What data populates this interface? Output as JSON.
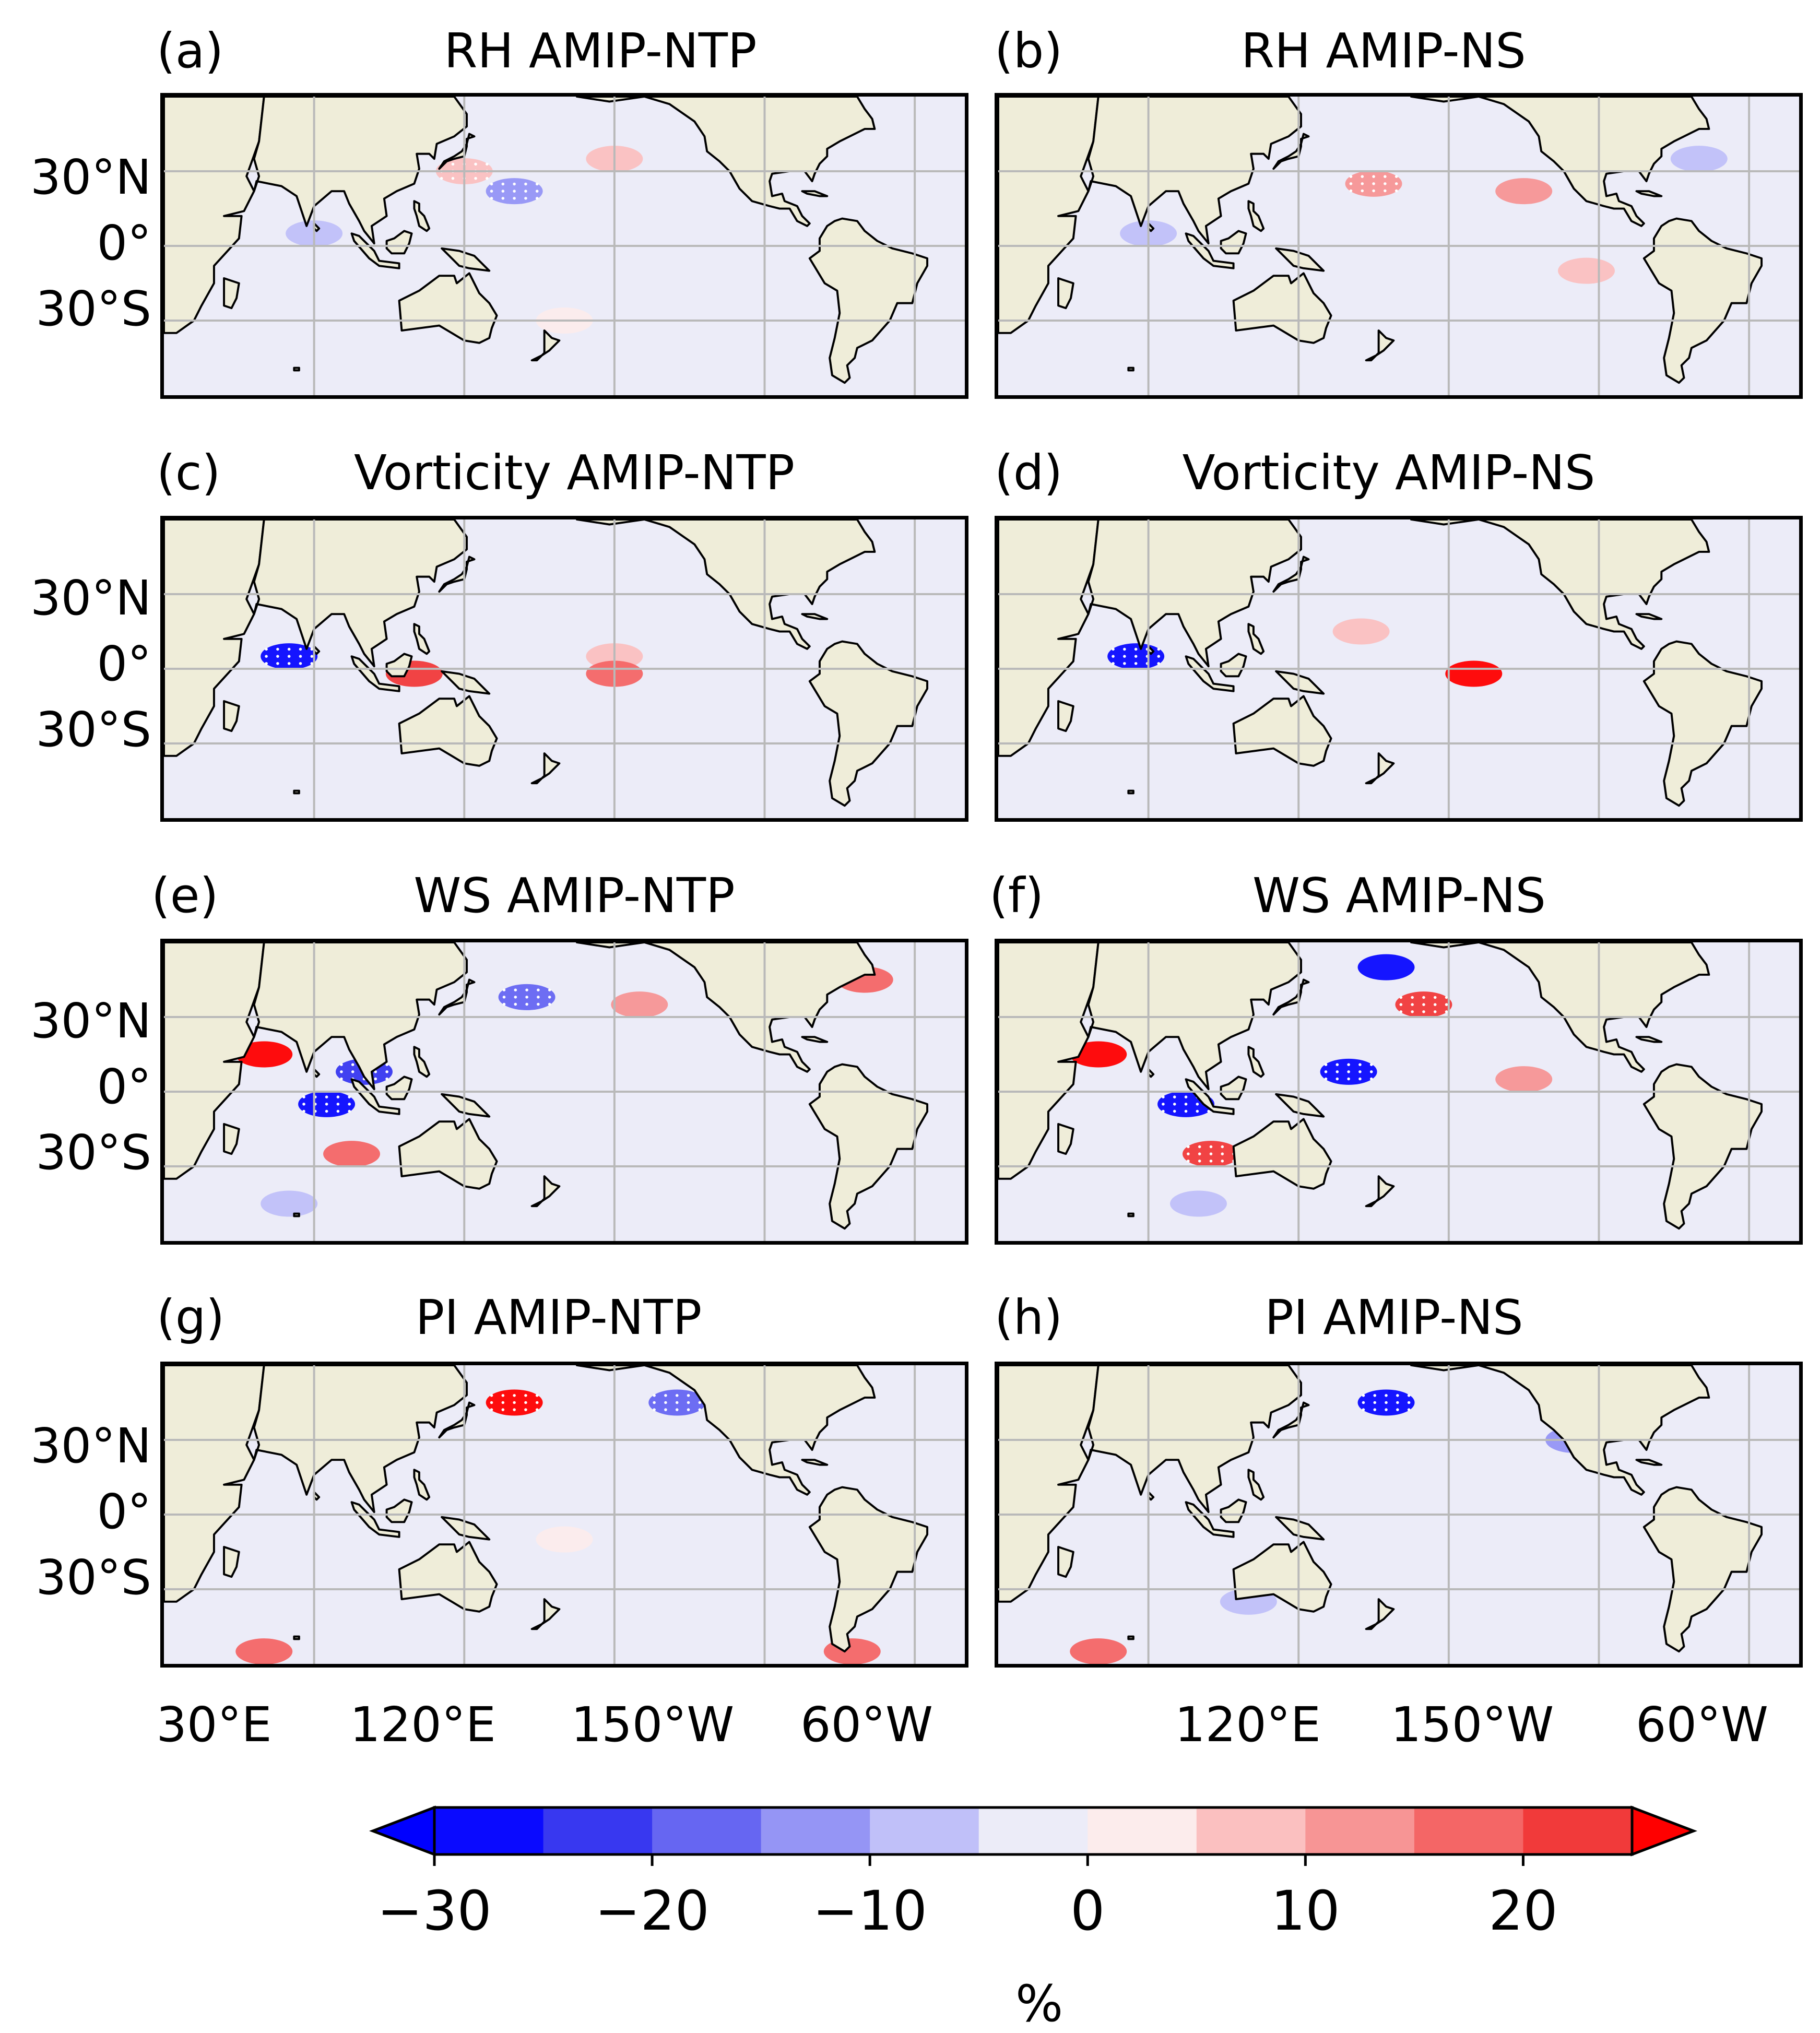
{
  "figure": {
    "colors": {
      "land": "#efedd9",
      "coast": "#000000",
      "grid": "#b9b9b9",
      "ocean_neutral": "#ececf8"
    }
  },
  "chart_data": [
    {
      "id": "a",
      "type": "heatmap",
      "label": "(a)",
      "title": "RH AMIP-NTP",
      "variable": "RH",
      "experiment": "AMIP-NTP",
      "features": [
        {
          "lon": 160,
          "lat": 22,
          "value": -12,
          "stippled": true
        },
        {
          "lon": 80,
          "lat": 5,
          "value": -7
        },
        {
          "lon": 140,
          "lat": 30,
          "value": 8,
          "stippled": true
        },
        {
          "lon": 200,
          "lat": 35,
          "value": 6
        },
        {
          "lon": 180,
          "lat": -30,
          "value": 4
        }
      ]
    },
    {
      "id": "b",
      "type": "heatmap",
      "label": "(b)",
      "title": "RH AMIP-NS",
      "variable": "RH",
      "experiment": "AMIP-NS",
      "features": [
        {
          "lon": 170,
          "lat": 25,
          "value": 12,
          "stippled": true
        },
        {
          "lon": 230,
          "lat": 22,
          "value": 12
        },
        {
          "lon": 80,
          "lat": 5,
          "value": -7
        },
        {
          "lon": 255,
          "lat": -10,
          "value": 8
        },
        {
          "lon": 300,
          "lat": 35,
          "value": -6
        }
      ]
    },
    {
      "id": "c",
      "type": "heatmap",
      "label": "(c)",
      "title": "Vorticity AMIP-NTP",
      "variable": "Vorticity",
      "experiment": "AMIP-NTP",
      "features": [
        {
          "lon": 70,
          "lat": 5,
          "value": -30,
          "stippled": true
        },
        {
          "lon": 120,
          "lat": -2,
          "value": 20
        },
        {
          "lon": 200,
          "lat": 5,
          "value": 6
        },
        {
          "lon": 200,
          "lat": -2,
          "value": 15
        }
      ]
    },
    {
      "id": "d",
      "type": "heatmap",
      "label": "(d)",
      "title": "Vorticity AMIP-NS",
      "variable": "Vorticity",
      "experiment": "AMIP-NS",
      "features": [
        {
          "lon": 75,
          "lat": 5,
          "value": -30,
          "stippled": true
        },
        {
          "lon": 210,
          "lat": -2,
          "value": 25
        },
        {
          "lon": 165,
          "lat": 15,
          "value": 8
        }
      ]
    },
    {
      "id": "e",
      "type": "heatmap",
      "label": "(e)",
      "title": "WS AMIP-NTP",
      "variable": "WS",
      "experiment": "AMIP-NTP",
      "features": [
        {
          "lon": 85,
          "lat": -5,
          "value": -30,
          "stippled": true
        },
        {
          "lon": 100,
          "lat": 8,
          "value": -25,
          "stippled": true
        },
        {
          "lon": 95,
          "lat": -25,
          "value": 18
        },
        {
          "lon": 60,
          "lat": 15,
          "value": 25
        },
        {
          "lon": 165,
          "lat": 38,
          "value": -20,
          "stippled": true
        },
        {
          "lon": 210,
          "lat": 35,
          "value": 12
        },
        {
          "lon": 300,
          "lat": 45,
          "value": 15
        },
        {
          "lon": 70,
          "lat": -45,
          "value": -8
        }
      ]
    },
    {
      "id": "f",
      "type": "heatmap",
      "label": "(f)",
      "title": "WS AMIP-NS",
      "variable": "WS",
      "experiment": "AMIP-NS",
      "features": [
        {
          "lon": 95,
          "lat": -5,
          "value": -30,
          "stippled": true
        },
        {
          "lon": 160,
          "lat": 8,
          "value": -28,
          "stippled": true
        },
        {
          "lon": 190,
          "lat": 35,
          "value": 22,
          "stippled": true
        },
        {
          "lon": 175,
          "lat": 50,
          "value": -28
        },
        {
          "lon": 105,
          "lat": -25,
          "value": 22,
          "stippled": true
        },
        {
          "lon": 230,
          "lat": 5,
          "value": 12
        },
        {
          "lon": 60,
          "lat": 15,
          "value": 25
        },
        {
          "lon": 100,
          "lat": -45,
          "value": -10
        }
      ]
    },
    {
      "id": "g",
      "type": "heatmap",
      "label": "(g)",
      "title": "PI AMIP-NTP",
      "variable": "PI",
      "experiment": "AMIP-NTP",
      "features": [
        {
          "lon": 160,
          "lat": 45,
          "value": 28,
          "stippled": true
        },
        {
          "lon": 225,
          "lat": 45,
          "value": -20,
          "stippled": true
        },
        {
          "lon": 60,
          "lat": -55,
          "value": 18
        },
        {
          "lon": 295,
          "lat": -55,
          "value": 18
        },
        {
          "lon": 180,
          "lat": -10,
          "value": 3
        }
      ]
    },
    {
      "id": "h",
      "type": "heatmap",
      "label": "(h)",
      "title": "PI AMIP-NS",
      "variable": "PI",
      "experiment": "AMIP-NS",
      "features": [
        {
          "lon": 175,
          "lat": 45,
          "value": -30,
          "stippled": true
        },
        {
          "lon": 250,
          "lat": 30,
          "value": -15
        },
        {
          "lon": 60,
          "lat": -55,
          "value": 15
        },
        {
          "lon": 180,
          "lat": -10,
          "value": -3
        },
        {
          "lon": 120,
          "lat": -35,
          "value": -6
        }
      ]
    }
  ],
  "axes": {
    "lon_range": [
      20,
      340
    ],
    "lat_range": [
      -60,
      60
    ],
    "gridlines_lon": [
      80,
      140,
      200,
      260,
      320
    ],
    "gridlines_lat": [
      -30,
      0,
      30
    ],
    "lat_tick_labels": [
      "30°N",
      "0°",
      "30°S"
    ],
    "lon_tick_labels_left": [
      "30°E",
      "120°E",
      "150°W",
      "60°W"
    ],
    "lon_tick_labels_right": [
      "120°E",
      "150°W",
      "60°W"
    ]
  },
  "colorbar": {
    "levels": [
      -30,
      -25,
      -20,
      -15,
      -10,
      -5,
      0,
      5,
      10,
      15,
      20,
      25
    ],
    "colors": [
      "#0a0aff",
      "#3838f0",
      "#6666f2",
      "#9595f5",
      "#c0c0f9",
      "#ececf8",
      "#fcecec",
      "#fbc0c0",
      "#f79595",
      "#f46666",
      "#f13a3a"
    ],
    "under_color": "#0000ff",
    "over_color": "#ff0000",
    "tick_values": [
      -30,
      -20,
      -10,
      0,
      10,
      20
    ],
    "tick_labels": [
      "−30",
      "−20",
      "−10",
      "0",
      "10",
      "20"
    ],
    "unit": "%"
  }
}
